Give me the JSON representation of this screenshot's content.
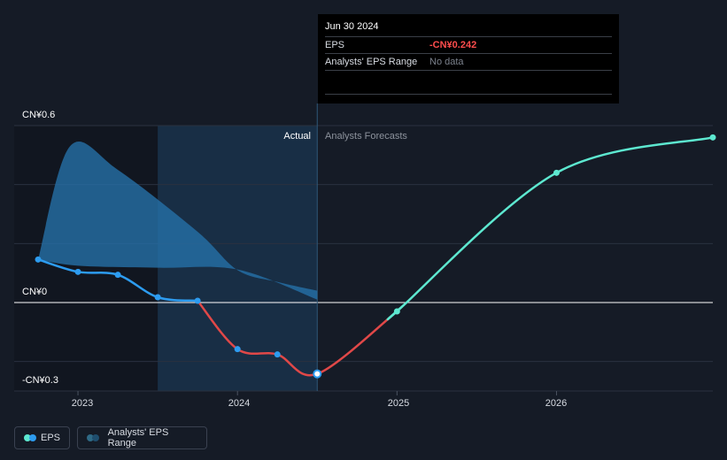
{
  "tooltip": {
    "date": "Jun 30 2024",
    "rows": [
      {
        "label": "EPS",
        "value": "-CN¥0.242"
      },
      {
        "label": "Analysts' EPS Range",
        "value": "No data"
      }
    ]
  },
  "regions": {
    "actual": "Actual",
    "forecast": "Analysts Forecasts"
  },
  "legend": {
    "eps": "EPS",
    "range": "Analysts' EPS Range"
  },
  "colors": {
    "eps_actual": "#2d9cf0",
    "eps_decline": "#e04848",
    "eps_forecast": "#5de8d0",
    "range_fill": "#2670a8",
    "highlight": "#1a3550",
    "background": "#151b26"
  },
  "chart_data": {
    "type": "line",
    "title": "",
    "ylabel": "",
    "xlabel": "",
    "y_ticks": [
      {
        "value": 0.6,
        "label": "CN¥0.6"
      },
      {
        "value": 0,
        "label": "CN¥0"
      },
      {
        "value": -0.3,
        "label": "-CN¥0.3"
      }
    ],
    "ylim": [
      -0.3,
      0.6
    ],
    "xlim": [
      2022.6,
      2026.98
    ],
    "x_ticks": [
      {
        "value": 2023,
        "label": "2023"
      },
      {
        "value": 2024,
        "label": "2024"
      },
      {
        "value": 2025,
        "label": "2025"
      },
      {
        "value": 2026,
        "label": "2026"
      }
    ],
    "grid": true,
    "legend_position": "bottom-left",
    "actual_forecast_divider": 2024.5,
    "highlight_range": [
      2023.5,
      2024.5
    ],
    "series": [
      {
        "name": "EPS",
        "points": [
          {
            "x": 2022.75,
            "y": 0.146
          },
          {
            "x": 2023.0,
            "y": 0.104
          },
          {
            "x": 2023.25,
            "y": 0.094
          },
          {
            "x": 2023.5,
            "y": 0.018
          },
          {
            "x": 2023.75,
            "y": 0.006
          },
          {
            "x": 2024.0,
            "y": -0.158
          },
          {
            "x": 2024.25,
            "y": -0.176
          },
          {
            "x": 2024.5,
            "y": -0.242
          },
          {
            "x": 2025.0,
            "y": -0.03
          },
          {
            "x": 2026.0,
            "y": 0.44
          },
          {
            "x": 2026.98,
            "y": 0.56
          }
        ]
      },
      {
        "name": "Analysts' EPS Range",
        "upper": [
          {
            "x": 2022.75,
            "y": 0.146
          },
          {
            "x": 2022.95,
            "y": 0.53
          },
          {
            "x": 2023.25,
            "y": 0.45
          },
          {
            "x": 2023.75,
            "y": 0.24
          },
          {
            "x": 2024.0,
            "y": 0.11
          },
          {
            "x": 2024.25,
            "y": 0.07
          },
          {
            "x": 2024.5,
            "y": 0.04
          }
        ],
        "lower": [
          {
            "x": 2022.75,
            "y": 0.146
          },
          {
            "x": 2023.0,
            "y": 0.125
          },
          {
            "x": 2023.5,
            "y": 0.118
          },
          {
            "x": 2024.0,
            "y": 0.112
          },
          {
            "x": 2024.5,
            "y": 0.01
          }
        ]
      }
    ]
  }
}
